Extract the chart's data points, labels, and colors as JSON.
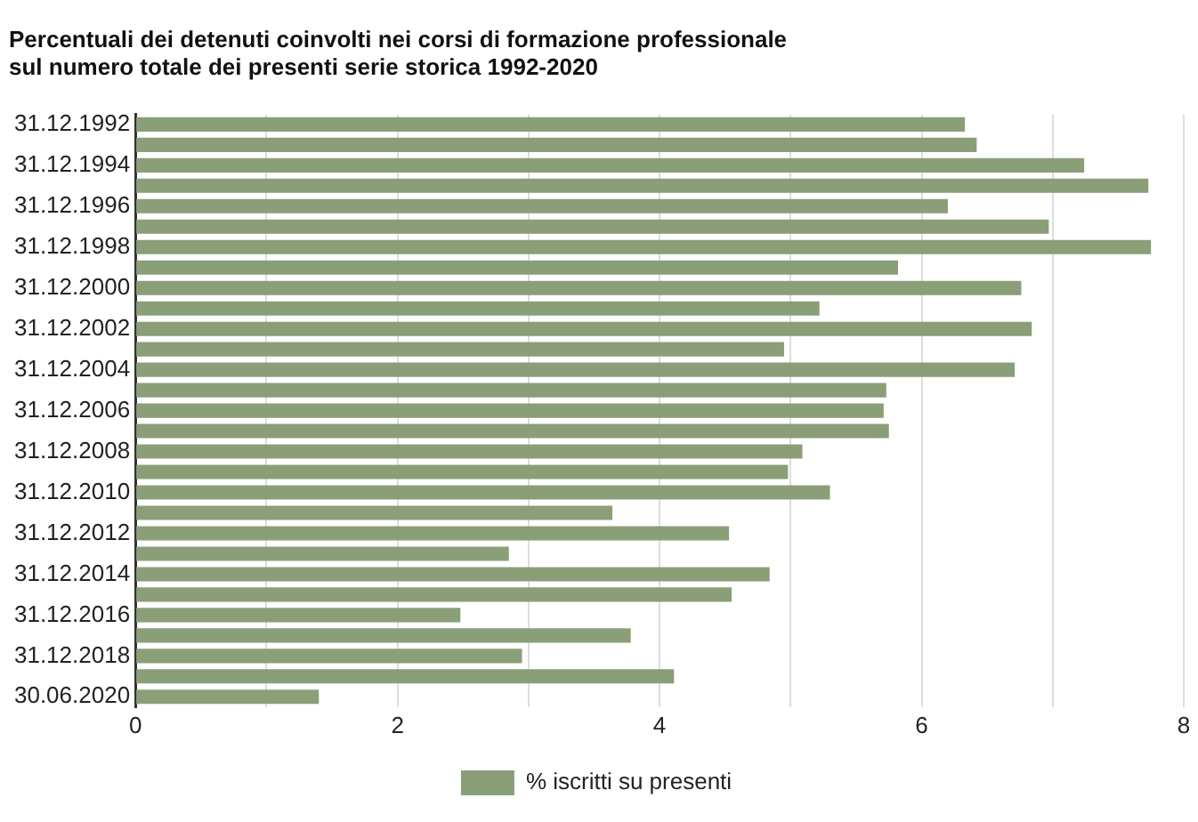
{
  "chart_data": {
    "type": "bar",
    "orientation": "horizontal",
    "title": "Percentuali dei detenuti coinvolti nei corsi di formazione professionale\nsul numero totale dei presenti serie storica 1992-2020",
    "categories": [
      "31.12.1992",
      null,
      "31.12.1994",
      null,
      "31.12.1996",
      null,
      "31.12.1998",
      null,
      "31.12.2000",
      null,
      "31.12.2002",
      null,
      "31.12.2004",
      null,
      "31.12.2006",
      null,
      "31.12.2008",
      null,
      "31.12.2010",
      null,
      "31.12.2012",
      null,
      "31.12.2014",
      null,
      "31.12.2016",
      null,
      "31.12.2018",
      null,
      "30.06.2020"
    ],
    "series": [
      {
        "name": "% iscritti su presenti",
        "color": "#8a9f78",
        "values": [
          6.33,
          6.42,
          7.24,
          7.73,
          6.2,
          6.97,
          7.75,
          5.82,
          6.76,
          5.22,
          6.84,
          4.95,
          6.71,
          5.73,
          5.71,
          5.75,
          5.09,
          4.98,
          5.3,
          3.64,
          4.53,
          2.85,
          4.84,
          4.55,
          2.48,
          3.78,
          2.95,
          4.11,
          1.4
        ]
      }
    ],
    "xlim": [
      0,
      8
    ],
    "xticks": [
      0,
      {
        "value": 1,
        "label": null
      },
      2,
      {
        "value": 3,
        "label": null
      },
      4,
      {
        "value": 5,
        "label": null
      },
      6,
      {
        "value": 7,
        "label": null
      },
      8
    ],
    "grid": "x",
    "legend": "bottom"
  }
}
